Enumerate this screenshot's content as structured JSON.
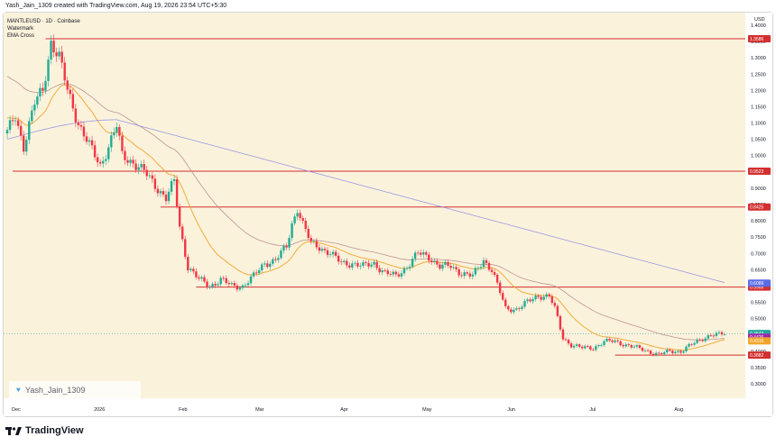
{
  "topline": "Yash_Jain_1309 created with TradingView.com, Aug 19, 2026 23:54 UTC+5:30",
  "legend": [
    "MANTLEUSD · 1D · Coinbase",
    "Watermark",
    "EMA Cross"
  ],
  "watermark": {
    "text": "Yash_Jain_1309",
    "icon": "heart-icon"
  },
  "footer": {
    "brand": "TradingView",
    "icon": "tradingview-logo-icon"
  },
  "colors": {
    "background": "#fbf2dc",
    "up": "#22ab94",
    "down": "#f23645",
    "level": "#d32f2f",
    "ema_fast": "#f0a52a",
    "ema_mid": "#b58a8a",
    "ema_slow": "#8d8fe0",
    "last_price": "#26a69a"
  },
  "chart_data": {
    "type": "candlestick",
    "symbol": "MANTLEUSD",
    "interval": "1D",
    "exchange": "Coinbase",
    "currency": "USD",
    "ylim": [
      0.3,
      1.4
    ],
    "ylabel": "USD",
    "y_ticks": [
      "1.4000",
      "1.3500",
      "1.3000",
      "1.2500",
      "1.2000",
      "1.1500",
      "1.1000",
      "1.0500",
      "1.0000",
      "0.9500",
      "0.9000",
      "0.8500",
      "0.8000",
      "0.7500",
      "0.7000",
      "0.6500",
      "0.6000",
      "0.5500",
      "0.5000",
      "0.4500",
      "0.4000",
      "0.3500",
      "0.3000"
    ],
    "x_ticks": [
      {
        "label": "Dec",
        "day": 1
      },
      {
        "label": "2026",
        "day": 31
      },
      {
        "label": "Feb",
        "day": 62
      },
      {
        "label": "Mar",
        "day": 90
      },
      {
        "label": "Apr",
        "day": 121
      },
      {
        "label": "May",
        "day": 151
      },
      {
        "label": "Jun",
        "day": 182
      },
      {
        "label": "Jul",
        "day": 212
      },
      {
        "label": "Aug",
        "day": 243
      }
    ],
    "x_range_days": [
      0,
      262
    ],
    "key_points": [
      [
        0,
        1.07
      ],
      [
        3,
        1.12
      ],
      [
        6,
        1.03
      ],
      [
        10,
        1.16
      ],
      [
        13,
        1.2
      ],
      [
        16,
        1.35
      ],
      [
        19,
        1.3
      ],
      [
        22,
        1.2
      ],
      [
        26,
        1.1
      ],
      [
        30,
        1.03
      ],
      [
        34,
        0.97
      ],
      [
        38,
        1.05
      ],
      [
        40,
        1.09
      ],
      [
        42,
        1.0
      ],
      [
        46,
        0.98
      ],
      [
        50,
        0.95
      ],
      [
        54,
        0.91
      ],
      [
        58,
        0.87
      ],
      [
        61,
        0.92
      ],
      [
        63,
        0.78
      ],
      [
        66,
        0.66
      ],
      [
        70,
        0.62
      ],
      [
        74,
        0.6
      ],
      [
        78,
        0.62
      ],
      [
        82,
        0.6
      ],
      [
        86,
        0.6
      ],
      [
        90,
        0.63
      ],
      [
        94,
        0.67
      ],
      [
        98,
        0.68
      ],
      [
        102,
        0.72
      ],
      [
        104,
        0.79
      ],
      [
        106,
        0.84
      ],
      [
        108,
        0.79
      ],
      [
        111,
        0.73
      ],
      [
        114,
        0.72
      ],
      [
        118,
        0.7
      ],
      [
        122,
        0.67
      ],
      [
        126,
        0.67
      ],
      [
        130,
        0.66
      ],
      [
        134,
        0.67
      ],
      [
        138,
        0.64
      ],
      [
        142,
        0.63
      ],
      [
        146,
        0.66
      ],
      [
        150,
        0.7
      ],
      [
        154,
        0.69
      ],
      [
        158,
        0.66
      ],
      [
        162,
        0.66
      ],
      [
        166,
        0.64
      ],
      [
        170,
        0.63
      ],
      [
        174,
        0.68
      ],
      [
        177,
        0.65
      ],
      [
        180,
        0.58
      ],
      [
        182,
        0.53
      ],
      [
        186,
        0.53
      ],
      [
        190,
        0.55
      ],
      [
        194,
        0.57
      ],
      [
        198,
        0.57
      ],
      [
        200,
        0.53
      ],
      [
        203,
        0.44
      ],
      [
        206,
        0.42
      ],
      [
        210,
        0.41
      ],
      [
        214,
        0.41
      ],
      [
        218,
        0.43
      ],
      [
        222,
        0.43
      ],
      [
        226,
        0.42
      ],
      [
        230,
        0.41
      ],
      [
        234,
        0.4
      ],
      [
        238,
        0.39
      ],
      [
        242,
        0.4
      ],
      [
        246,
        0.4
      ],
      [
        250,
        0.42
      ],
      [
        254,
        0.44
      ],
      [
        257,
        0.45
      ],
      [
        260,
        0.45
      ],
      [
        262,
        0.4543
      ]
    ],
    "horizontal_levels": [
      {
        "price": 1.3586,
        "label": "1.3586",
        "from_day": 14
      },
      {
        "price": 0.9523,
        "label": "0.9523",
        "from_day": 2
      },
      {
        "price": 0.8425,
        "label": "0.8425",
        "from_day": 56
      },
      {
        "price": 0.5966,
        "label": "0.5966",
        "from_day": 69
      },
      {
        "price": 0.3882,
        "label": "0.3882",
        "from_day": 222
      }
    ],
    "price_tags": [
      {
        "value": 0.6089,
        "label": "0.6089",
        "color": "#5b6be6"
      },
      {
        "value": 0.4543,
        "label": "0.4543",
        "color": "#26a69a"
      },
      {
        "value": 0.4426,
        "label": "0.4426",
        "color": "#9c27b0"
      },
      {
        "value": 0.4315,
        "label": "0.4315",
        "color": "#f0a52a"
      }
    ],
    "ema_periods": [
      20,
      50,
      200
    ]
  }
}
